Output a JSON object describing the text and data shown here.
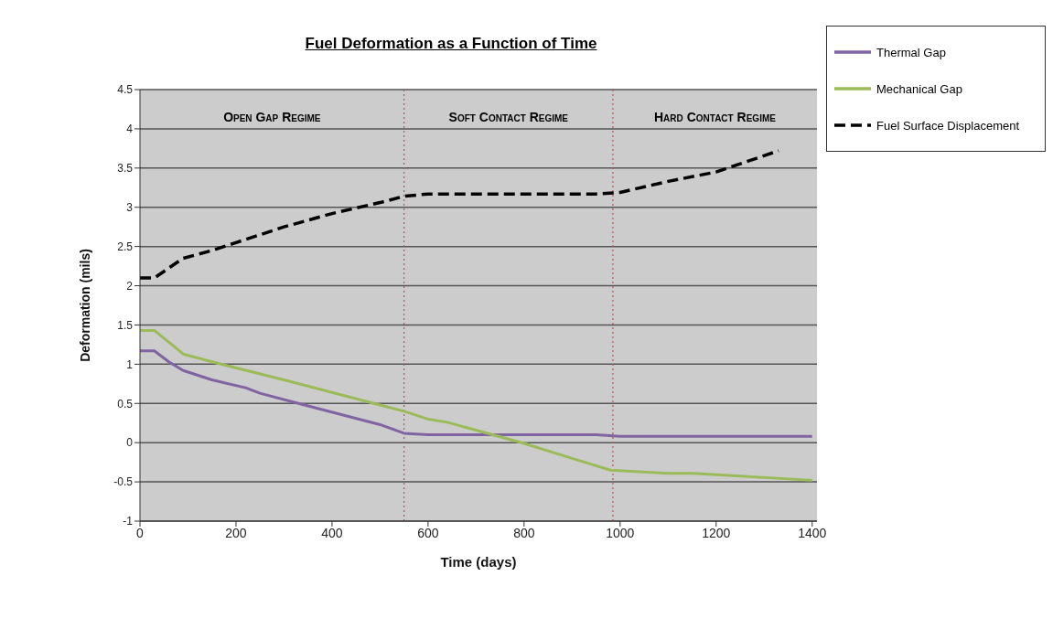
{
  "chart_data": {
    "type": "line",
    "title": "Fuel Deformation as a Function of Time",
    "xlabel": "Time (days)",
    "ylabel": "Deformation (mils)",
    "xlim": [
      0,
      1410
    ],
    "xticks": [
      0,
      200,
      400,
      600,
      800,
      1000,
      1200,
      1400
    ],
    "ylim": [
      -1,
      4.5
    ],
    "yticks": [
      -1,
      -0.5,
      0,
      0.5,
      1,
      1.5,
      2,
      2.5,
      3,
      3.5,
      4,
      4.5
    ],
    "grid": "y",
    "legend": "top right",
    "marker": "none",
    "series": [
      {
        "name": "Thermal Gap",
        "color": "#8064a2",
        "line_style": "solid",
        "x": [
          0,
          30,
          60,
          90,
          150,
          220,
          250,
          330,
          500,
          550,
          600,
          950,
          1000,
          1400
        ],
        "values": [
          1.17,
          1.17,
          1.03,
          0.92,
          0.8,
          0.7,
          0.63,
          0.5,
          0.23,
          0.12,
          0.1,
          0.1,
          0.08,
          0.08
        ]
      },
      {
        "name": "Mechanical Gap",
        "color": "#9bbb59",
        "line_style": "solid",
        "x": [
          0,
          30,
          90,
          150,
          300,
          500,
          550,
          600,
          640,
          800,
          900,
          980,
          1100,
          1150,
          1400
        ],
        "values": [
          1.43,
          1.43,
          1.13,
          1.03,
          0.8,
          0.48,
          0.4,
          0.3,
          0.26,
          -0.01,
          -0.2,
          -0.35,
          -0.39,
          -0.39,
          -0.48
        ]
      },
      {
        "name": "Fuel Surface Displacement",
        "color": "#000000",
        "line_style": "dashed",
        "x": [
          0,
          30,
          90,
          150,
          200,
          300,
          400,
          500,
          550,
          600,
          950,
          1000,
          1100,
          1200,
          1330
        ],
        "values": [
          2.1,
          2.1,
          2.35,
          2.45,
          2.55,
          2.75,
          2.92,
          3.06,
          3.14,
          3.17,
          3.17,
          3.19,
          3.33,
          3.45,
          3.72
        ]
      }
    ],
    "ref_lines": [
      {
        "axis": "x",
        "value": 550,
        "color": "#c0504d",
        "line_style": "dotted"
      },
      {
        "axis": "x",
        "value": 985,
        "color": "#c0504d",
        "line_style": "dotted"
      }
    ],
    "annotations": [
      "Open Gap Regime",
      "Soft Contact Regime",
      "Hard Contact Regime"
    ]
  }
}
